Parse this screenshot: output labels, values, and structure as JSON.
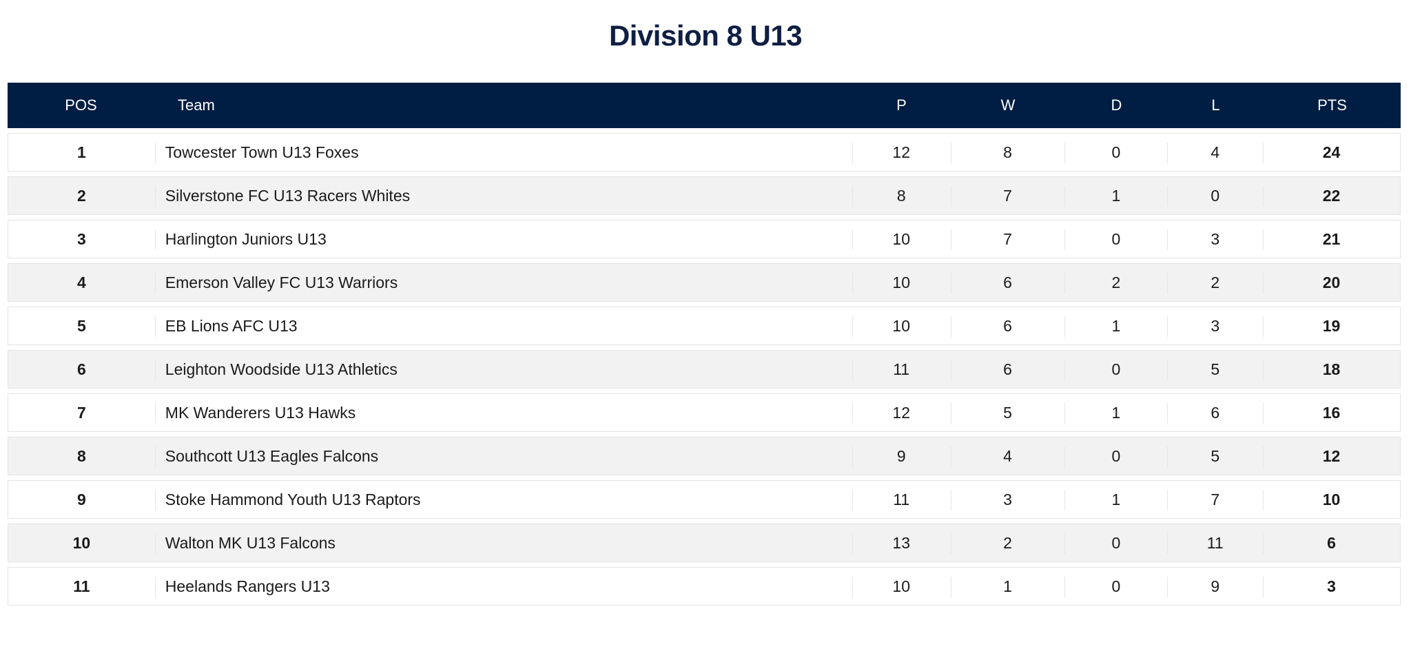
{
  "title": "Division 8 U13",
  "columns": {
    "pos": "POS",
    "team": "Team",
    "p": "P",
    "w": "W",
    "d": "D",
    "l": "L",
    "pts": "PTS"
  },
  "rows": [
    {
      "pos": "1",
      "team": "Towcester Town U13 Foxes",
      "p": "12",
      "w": "8",
      "d": "0",
      "l": "4",
      "pts": "24"
    },
    {
      "pos": "2",
      "team": "Silverstone FC U13 Racers Whites",
      "p": "8",
      "w": "7",
      "d": "1",
      "l": "0",
      "pts": "22"
    },
    {
      "pos": "3",
      "team": "Harlington Juniors U13",
      "p": "10",
      "w": "7",
      "d": "0",
      "l": "3",
      "pts": "21"
    },
    {
      "pos": "4",
      "team": "Emerson Valley FC U13 Warriors",
      "p": "10",
      "w": "6",
      "d": "2",
      "l": "2",
      "pts": "20"
    },
    {
      "pos": "5",
      "team": "EB Lions AFC U13",
      "p": "10",
      "w": "6",
      "d": "1",
      "l": "3",
      "pts": "19"
    },
    {
      "pos": "6",
      "team": "Leighton Woodside U13 Athletics",
      "p": "11",
      "w": "6",
      "d": "0",
      "l": "5",
      "pts": "18"
    },
    {
      "pos": "7",
      "team": "MK Wanderers U13 Hawks",
      "p": "12",
      "w": "5",
      "d": "1",
      "l": "6",
      "pts": "16"
    },
    {
      "pos": "8",
      "team": "Southcott U13 Eagles Falcons",
      "p": "9",
      "w": "4",
      "d": "0",
      "l": "5",
      "pts": "12"
    },
    {
      "pos": "9",
      "team": "Stoke Hammond Youth U13 Raptors",
      "p": "11",
      "w": "3",
      "d": "1",
      "l": "7",
      "pts": "10"
    },
    {
      "pos": "10",
      "team": "Walton MK U13 Falcons",
      "p": "13",
      "w": "2",
      "d": "0",
      "l": "11",
      "pts": "6"
    },
    {
      "pos": "11",
      "team": "Heelands Rangers U13",
      "p": "10",
      "w": "1",
      "d": "0",
      "l": "9",
      "pts": "3"
    }
  ],
  "colors": {
    "header_bg": "#001d43",
    "title": "#0f1f44",
    "row_alt": "#f2f2f2"
  }
}
